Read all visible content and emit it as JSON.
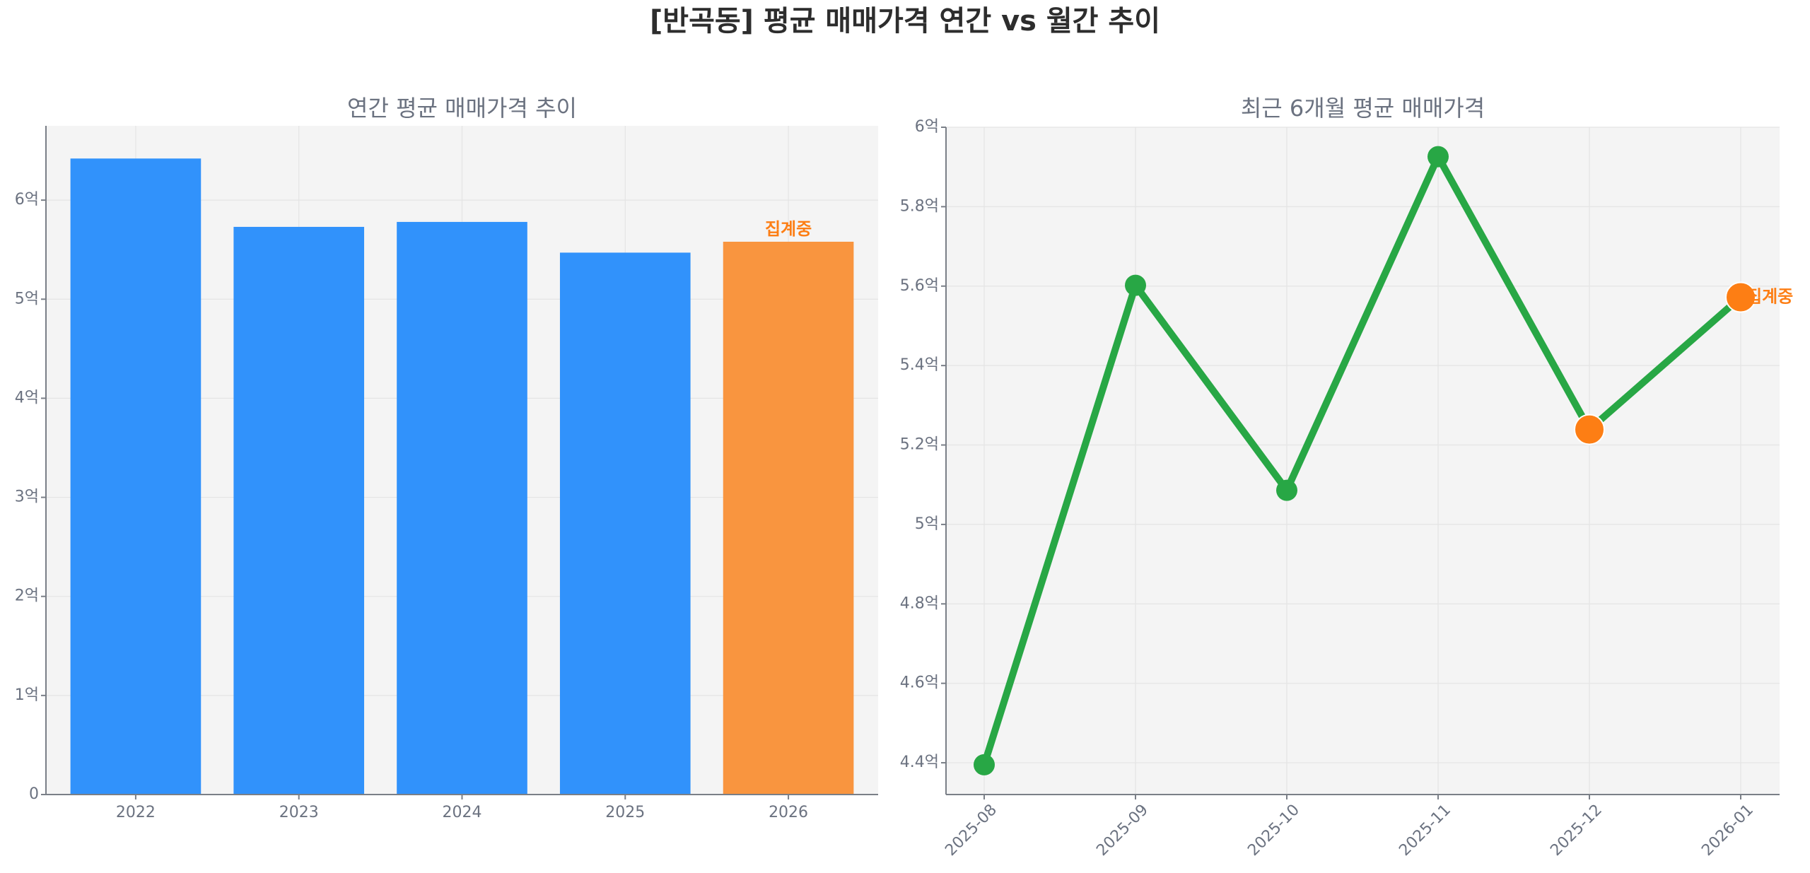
{
  "suptitle": "[반곡동] 평균 매매가격 연간 vs 월간 추이",
  "colors": {
    "bar": "#3192fb",
    "bar_current": "#f9953f",
    "line": "#28a745",
    "marker_current": "#fd7e14",
    "annotation": "#fd7e14",
    "panel_bg": "#f4f4f4"
  },
  "chart_data": [
    {
      "type": "bar",
      "title": "연간 평균 매매가격 추이",
      "categories": [
        "2022",
        "2023",
        "2024",
        "2025",
        "2026"
      ],
      "values": [
        6.42,
        5.73,
        5.78,
        5.47,
        5.58
      ],
      "unit": "억",
      "ylim": [
        0,
        6.75
      ],
      "yticks": [
        0,
        1,
        2,
        3,
        4,
        5,
        6
      ],
      "ytick_labels": [
        "0",
        "1억",
        "2억",
        "3억",
        "4억",
        "5억",
        "6억"
      ],
      "highlight_index": 4,
      "annotation": {
        "text": "집계중",
        "category": "2026"
      },
      "grid": true
    },
    {
      "type": "line",
      "title": "최근 6개월 평균 매매가격",
      "x": [
        "2025-08",
        "2025-09",
        "2025-10",
        "2025-11",
        "2025-12",
        "2026-01"
      ],
      "values": [
        4.395,
        5.602,
        5.086,
        5.926,
        5.239,
        5.572
      ],
      "unit": "억",
      "ylim": [
        4.32,
        6.0
      ],
      "yticks": [
        4.4,
        4.6,
        4.8,
        5.0,
        5.2,
        5.4,
        5.6,
        5.8,
        6.0
      ],
      "ytick_labels": [
        "4.4억",
        "4.6억",
        "4.8억",
        "5억",
        "5.2억",
        "5.4억",
        "5.6억",
        "5.8억",
        "6억"
      ],
      "highlight_indices": [
        4,
        5
      ],
      "annotation": {
        "text": "집계중",
        "x": "2026-01"
      },
      "grid": true
    }
  ]
}
